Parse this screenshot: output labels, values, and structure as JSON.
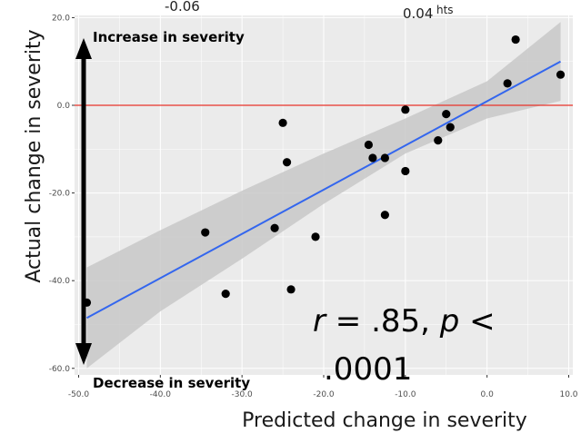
{
  "chart_data": {
    "type": "scatter",
    "xlabel": "Predicted change in severity",
    "ylabel": "Actual change in severity",
    "xlim": [
      -50.5,
      10.5
    ],
    "ylim": [
      -61.5,
      20.5
    ],
    "x_ticks": [
      -50.0,
      -40.0,
      -30.0,
      -20.0,
      -10.0,
      0.0,
      10.0
    ],
    "x_tick_labels": [
      "-50.0",
      "-40.0",
      "-30.0",
      "-20.0",
      "-10.0",
      "0.0",
      "10.0"
    ],
    "y_ticks": [
      -60.0,
      -40.0,
      -20.0,
      0.0,
      20.0
    ],
    "y_tick_labels": [
      "-60.0",
      "-40.0",
      "-20.0",
      "0.0",
      "20.0"
    ],
    "grid": true,
    "reference_line": {
      "y": 0,
      "color": "#e8332a"
    },
    "points": [
      {
        "x": -49,
        "y": -45
      },
      {
        "x": -34.5,
        "y": -29
      },
      {
        "x": -32,
        "y": -43
      },
      {
        "x": -26,
        "y": -28
      },
      {
        "x": -25,
        "y": -4
      },
      {
        "x": -24.5,
        "y": -13
      },
      {
        "x": -24,
        "y": -42
      },
      {
        "x": -21,
        "y": -30
      },
      {
        "x": -14.5,
        "y": -9
      },
      {
        "x": -14,
        "y": -12
      },
      {
        "x": -12.5,
        "y": -12
      },
      {
        "x": -12.5,
        "y": -25
      },
      {
        "x": -10,
        "y": -1
      },
      {
        "x": -10,
        "y": -15
      },
      {
        "x": -6,
        "y": -8
      },
      {
        "x": -5,
        "y": -2
      },
      {
        "x": -4.5,
        "y": -5
      },
      {
        "x": 2.5,
        "y": 5
      },
      {
        "x": 3.5,
        "y": 15
      },
      {
        "x": 9,
        "y": 7
      }
    ],
    "fit_line": {
      "x": [
        -49,
        9
      ],
      "y": [
        -48.5,
        10
      ],
      "color": "#3366ee"
    },
    "confidence_band": {
      "x": [
        -49,
        -40,
        -30,
        -20,
        -10,
        0,
        9
      ],
      "upper": [
        -37,
        -28.5,
        -19.5,
        -11,
        -3,
        5.5,
        19
      ],
      "lower": [
        -60,
        -47,
        -35,
        -22.5,
        -11,
        -3,
        1
      ]
    },
    "colors": {
      "panel": "#ebebeb",
      "grid": "#ffffff",
      "points": "#000000",
      "band": "#c8c8c8"
    }
  },
  "annotations": {
    "increase": "Increase in severity",
    "decrease": "Decrease in severity",
    "stat_line1": "r = .85, p <",
    "stat_line2": ".0001",
    "stat_r": "r",
    "stat_eq": " = .85, ",
    "stat_p": "p",
    "stat_lt": " <"
  },
  "top_fragments": {
    "left": "-0.06",
    "right": "0.04",
    "right_suffix": "hts"
  }
}
